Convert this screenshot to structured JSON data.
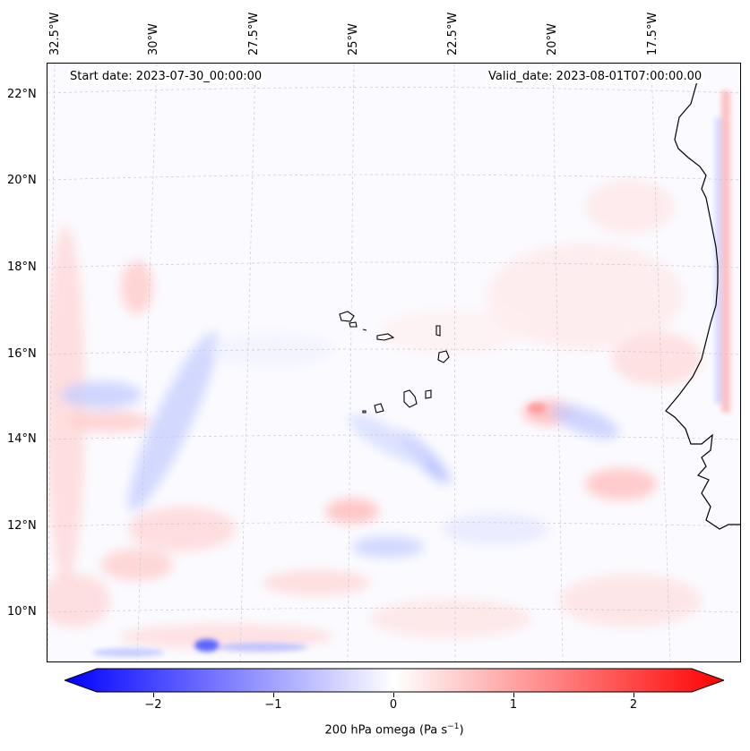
{
  "map": {
    "start_date": "Start date: 2023-07-30_00:00:00",
    "valid_date": "Valid_date: 2023-08-01T07:00:00.00",
    "lon_labels": [
      "32.5°W",
      "30°W",
      "27.5°W",
      "25°W",
      "22.5°W",
      "20°W",
      "17.5°W"
    ],
    "lat_labels": [
      "22°N",
      "20°N",
      "18°N",
      "16°N",
      "14°N",
      "12°N",
      "10°N"
    ]
  },
  "colorbar": {
    "label": "200 hPa omega (Pa s",
    "label_sup": "−1",
    "label_end": ")",
    "ticks": [
      "−2",
      "−1",
      "0",
      "1",
      "2"
    ],
    "min": -2.75,
    "max": 2.75,
    "tick_values": [
      -2,
      -1,
      0,
      1,
      2
    ],
    "neg_color": "#0000ff",
    "pos_color": "#ff0000"
  }
}
